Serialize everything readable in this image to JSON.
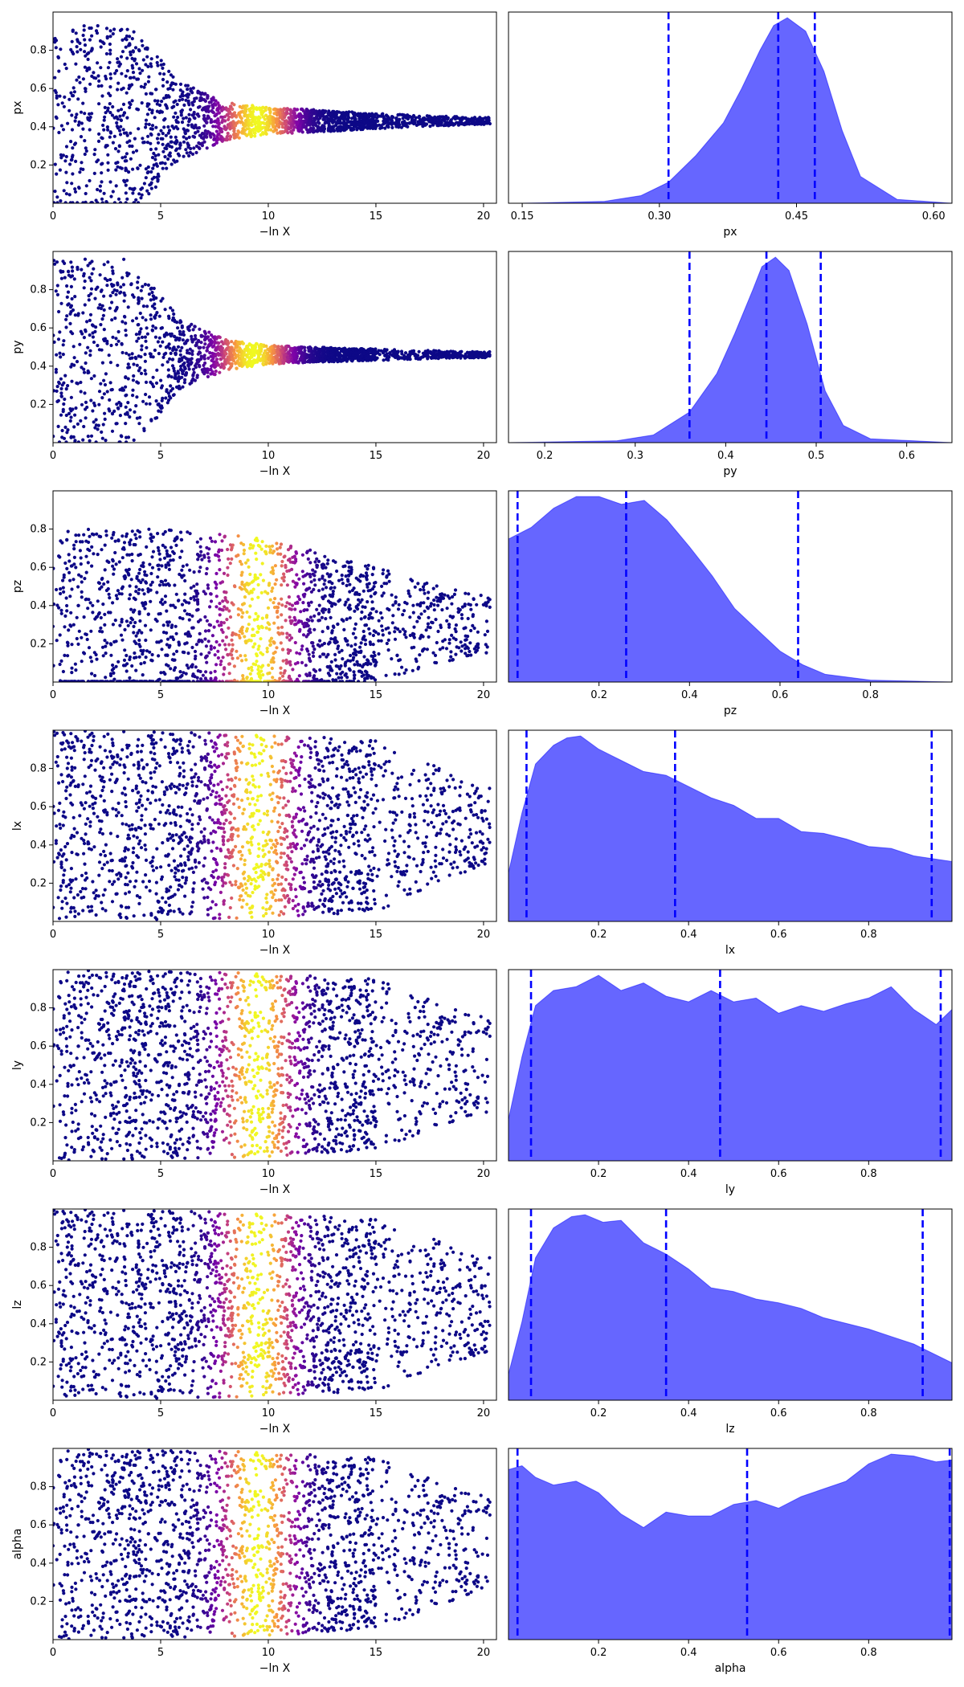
{
  "chart_data": [
    {
      "type": "scatter",
      "row": 0,
      "x_axis": {
        "label": "−ln X",
        "range": [
          0,
          20.6
        ],
        "ticks": [
          0,
          5,
          10,
          15,
          20
        ]
      },
      "y_axis": {
        "label": "px",
        "range": [
          0.0,
          1.0
        ],
        "ticks": [
          0.2,
          0.4,
          0.6,
          0.8
        ]
      },
      "colormap": "plasma",
      "color_peak_x": 9.5,
      "envelope": {
        "center": 0.43,
        "tight_x": [
          0,
          3.5,
          6,
          8,
          10,
          12,
          15,
          18,
          20
        ],
        "half_width": [
          0.5,
          0.5,
          0.2,
          0.1,
          0.07,
          0.06,
          0.04,
          0.025,
          0.02
        ]
      }
    },
    {
      "type": "area",
      "row": 0,
      "x_axis": {
        "label": "px",
        "range": [
          0.135,
          0.62
        ],
        "ticks": [
          0.15,
          0.3,
          0.45,
          0.6
        ],
        "tick_labels": [
          "0.15",
          "0.30",
          "0.45",
          "0.60"
        ]
      },
      "series": [
        {
          "x": [
            0.15,
            0.24,
            0.28,
            0.31,
            0.34,
            0.37,
            0.39,
            0.41,
            0.425,
            0.44,
            0.46,
            0.48,
            0.5,
            0.52,
            0.56,
            0.62
          ],
          "y": [
            0.0,
            0.01,
            0.04,
            0.11,
            0.25,
            0.42,
            0.6,
            0.8,
            0.93,
            0.97,
            0.9,
            0.69,
            0.38,
            0.14,
            0.02,
            0.0
          ]
        }
      ],
      "quantile_lines": [
        0.31,
        0.43,
        0.47
      ],
      "fill_color": "#6666ff",
      "line_color": "#0000ff"
    },
    {
      "type": "scatter",
      "row": 1,
      "x_axis": {
        "label": "−ln X",
        "range": [
          0,
          20.6
        ],
        "ticks": [
          0,
          5,
          10,
          15,
          20
        ]
      },
      "y_axis": {
        "label": "py",
        "range": [
          0.0,
          1.0
        ],
        "ticks": [
          0.2,
          0.4,
          0.6,
          0.8
        ]
      },
      "colormap": "plasma",
      "color_peak_x": 9.3,
      "envelope": {
        "center": 0.46,
        "tight_x": [
          0,
          3.5,
          6,
          8,
          10,
          12,
          15,
          18,
          20
        ],
        "half_width": [
          0.5,
          0.5,
          0.18,
          0.08,
          0.05,
          0.04,
          0.03,
          0.02,
          0.015
        ]
      }
    },
    {
      "type": "area",
      "row": 1,
      "x_axis": {
        "label": "py",
        "range": [
          0.16,
          0.65
        ],
        "ticks": [
          0.2,
          0.3,
          0.4,
          0.5,
          0.6
        ],
        "tick_labels": [
          "0.2",
          "0.3",
          "0.4",
          "0.5",
          "0.6"
        ]
      },
      "series": [
        {
          "x": [
            0.16,
            0.28,
            0.32,
            0.36,
            0.39,
            0.41,
            0.43,
            0.44,
            0.455,
            0.47,
            0.49,
            0.51,
            0.53,
            0.56,
            0.65
          ],
          "y": [
            0.0,
            0.01,
            0.04,
            0.16,
            0.36,
            0.57,
            0.8,
            0.92,
            0.97,
            0.9,
            0.62,
            0.27,
            0.09,
            0.02,
            0.0
          ]
        }
      ],
      "quantile_lines": [
        0.36,
        0.445,
        0.505
      ],
      "fill_color": "#6666ff",
      "line_color": "#0000ff"
    },
    {
      "type": "scatter",
      "row": 2,
      "x_axis": {
        "label": "−ln X",
        "range": [
          0,
          20.6
        ],
        "ticks": [
          0,
          5,
          10,
          15,
          20
        ]
      },
      "y_axis": {
        "label": "pz",
        "range": [
          0.0,
          1.0
        ],
        "ticks": [
          0.2,
          0.4,
          0.6,
          0.8
        ]
      },
      "colormap": "plasma",
      "color_peak_x": 9.5,
      "envelope": {
        "center": 0.3,
        "tight_x": [
          0,
          5,
          10,
          15,
          20
        ],
        "half_width": [
          0.5,
          0.5,
          0.45,
          0.3,
          0.15
        ]
      }
    },
    {
      "type": "area",
      "row": 2,
      "x_axis": {
        "label": "pz",
        "range": [
          0.0,
          0.98
        ],
        "ticks": [
          0.2,
          0.4,
          0.6,
          0.8
        ],
        "tick_labels": [
          "0.2",
          "0.4",
          "0.6",
          "0.8"
        ]
      },
      "series": [
        {
          "x": [
            0.0,
            0.05,
            0.1,
            0.15,
            0.2,
            0.25,
            0.3,
            0.35,
            0.4,
            0.45,
            0.5,
            0.55,
            0.6,
            0.65,
            0.7,
            0.8,
            0.98
          ],
          "y": [
            0.74,
            0.8,
            0.9,
            0.96,
            0.96,
            0.92,
            0.94,
            0.84,
            0.7,
            0.55,
            0.38,
            0.27,
            0.16,
            0.09,
            0.04,
            0.01,
            0.0
          ]
        }
      ],
      "quantile_lines": [
        0.02,
        0.26,
        0.64
      ],
      "fill_color": "#6666ff",
      "line_color": "#0000ff"
    },
    {
      "type": "scatter",
      "row": 3,
      "x_axis": {
        "label": "−ln X",
        "range": [
          0,
          20.6
        ],
        "ticks": [
          0,
          5,
          10,
          15,
          20
        ]
      },
      "y_axis": {
        "label": "lx",
        "range": [
          0.0,
          1.0
        ],
        "ticks": [
          0.2,
          0.4,
          0.6,
          0.8
        ]
      },
      "colormap": "plasma",
      "color_peak_x": 9.5,
      "envelope": {
        "center": 0.5,
        "tight_x": [
          0,
          10,
          15,
          20
        ],
        "half_width": [
          0.5,
          0.48,
          0.45,
          0.2
        ]
      }
    },
    {
      "type": "area",
      "row": 3,
      "x_axis": {
        "label": "lx",
        "range": [
          0.0,
          0.985
        ],
        "ticks": [
          0.2,
          0.4,
          0.6,
          0.8
        ],
        "tick_labels": [
          "0.2",
          "0.4",
          "0.6",
          "0.8"
        ]
      },
      "series": [
        {
          "x": [
            0.0,
            0.03,
            0.06,
            0.1,
            0.13,
            0.16,
            0.2,
            0.25,
            0.3,
            0.35,
            0.4,
            0.45,
            0.5,
            0.55,
            0.6,
            0.65,
            0.7,
            0.75,
            0.8,
            0.85,
            0.9,
            0.985
          ],
          "y": [
            0.26,
            0.58,
            0.84,
            0.94,
            0.98,
            0.99,
            0.92,
            0.86,
            0.8,
            0.78,
            0.72,
            0.66,
            0.62,
            0.55,
            0.55,
            0.48,
            0.47,
            0.44,
            0.4,
            0.39,
            0.35,
            0.32
          ]
        }
      ],
      "quantile_lines": [
        0.04,
        0.37,
        0.94
      ],
      "fill_color": "#6666ff",
      "line_color": "#0000ff"
    },
    {
      "type": "scatter",
      "row": 4,
      "x_axis": {
        "label": "−ln X",
        "range": [
          0,
          20.6
        ],
        "ticks": [
          0,
          5,
          10,
          15,
          20
        ]
      },
      "y_axis": {
        "label": "ly",
        "range": [
          0.0,
          1.0
        ],
        "ticks": [
          0.2,
          0.4,
          0.6,
          0.8
        ]
      },
      "colormap": "plasma",
      "color_peak_x": 9.5,
      "envelope": {
        "center": 0.5,
        "tight_x": [
          0,
          10,
          15,
          20
        ],
        "half_width": [
          0.5,
          0.48,
          0.45,
          0.25
        ]
      }
    },
    {
      "type": "area",
      "row": 4,
      "x_axis": {
        "label": "ly",
        "range": [
          0.0,
          0.985
        ],
        "ticks": [
          0.2,
          0.4,
          0.6,
          0.8
        ],
        "tick_labels": [
          "0.2",
          "0.4",
          "0.6",
          "0.8"
        ]
      },
      "series": [
        {
          "x": [
            0.0,
            0.03,
            0.06,
            0.1,
            0.15,
            0.2,
            0.25,
            0.3,
            0.35,
            0.4,
            0.45,
            0.5,
            0.55,
            0.6,
            0.65,
            0.7,
            0.75,
            0.8,
            0.85,
            0.9,
            0.95,
            0.985
          ],
          "y": [
            0.22,
            0.55,
            0.82,
            0.9,
            0.92,
            0.98,
            0.9,
            0.94,
            0.87,
            0.84,
            0.9,
            0.84,
            0.86,
            0.78,
            0.82,
            0.79,
            0.83,
            0.86,
            0.92,
            0.8,
            0.72,
            0.8
          ]
        }
      ],
      "quantile_lines": [
        0.05,
        0.47,
        0.96
      ],
      "fill_color": "#6666ff",
      "line_color": "#0000ff"
    },
    {
      "type": "scatter",
      "row": 5,
      "x_axis": {
        "label": "−ln X",
        "range": [
          0,
          20.6
        ],
        "ticks": [
          0,
          5,
          10,
          15,
          20
        ]
      },
      "y_axis": {
        "label": "lz",
        "range": [
          0.0,
          1.0
        ],
        "ticks": [
          0.2,
          0.4,
          0.6,
          0.8
        ]
      },
      "colormap": "plasma",
      "color_peak_x": 9.5,
      "envelope": {
        "center": 0.5,
        "tight_x": [
          0,
          10,
          15,
          20
        ],
        "half_width": [
          0.5,
          0.48,
          0.45,
          0.25
        ]
      }
    },
    {
      "type": "area",
      "row": 5,
      "x_axis": {
        "label": "lz",
        "range": [
          0.0,
          0.985
        ],
        "ticks": [
          0.2,
          0.4,
          0.6,
          0.8
        ],
        "tick_labels": [
          "0.2",
          "0.4",
          "0.6",
          "0.8"
        ]
      },
      "series": [
        {
          "x": [
            0.0,
            0.03,
            0.06,
            0.1,
            0.14,
            0.17,
            0.21,
            0.25,
            0.3,
            0.35,
            0.4,
            0.45,
            0.5,
            0.55,
            0.6,
            0.65,
            0.7,
            0.75,
            0.8,
            0.85,
            0.9,
            0.985
          ],
          "y": [
            0.14,
            0.42,
            0.76,
            0.92,
            0.98,
            0.99,
            0.95,
            0.96,
            0.84,
            0.78,
            0.7,
            0.6,
            0.58,
            0.54,
            0.52,
            0.49,
            0.44,
            0.41,
            0.38,
            0.34,
            0.3,
            0.2
          ]
        }
      ],
      "quantile_lines": [
        0.05,
        0.35,
        0.92
      ],
      "fill_color": "#6666ff",
      "line_color": "#0000ff"
    },
    {
      "type": "scatter",
      "row": 6,
      "x_axis": {
        "label": "−ln X",
        "range": [
          0,
          20.6
        ],
        "ticks": [
          0,
          5,
          10,
          15,
          20
        ]
      },
      "y_axis": {
        "label": "alpha",
        "range": [
          0.0,
          1.0
        ],
        "ticks": [
          0.2,
          0.4,
          0.6,
          0.8
        ]
      },
      "colormap": "plasma",
      "color_peak_x": 9.5,
      "envelope": {
        "center": 0.5,
        "tight_x": [
          0,
          10,
          15,
          20
        ],
        "half_width": [
          0.5,
          0.48,
          0.45,
          0.25
        ]
      }
    },
    {
      "type": "area",
      "row": 6,
      "x_axis": {
        "label": "alpha",
        "range": [
          0.0,
          0.985
        ],
        "ticks": [
          0.2,
          0.4,
          0.6,
          0.8
        ],
        "tick_labels": [
          "0.2",
          "0.4",
          "0.6",
          "0.8"
        ]
      },
      "series": [
        {
          "x": [
            0.0,
            0.03,
            0.06,
            0.1,
            0.15,
            0.2,
            0.25,
            0.3,
            0.35,
            0.4,
            0.45,
            0.5,
            0.55,
            0.6,
            0.65,
            0.7,
            0.75,
            0.8,
            0.85,
            0.9,
            0.95,
            0.985
          ],
          "y": [
            0.88,
            0.9,
            0.84,
            0.8,
            0.82,
            0.76,
            0.65,
            0.58,
            0.66,
            0.64,
            0.64,
            0.7,
            0.72,
            0.68,
            0.74,
            0.78,
            0.82,
            0.91,
            0.96,
            0.95,
            0.92,
            0.93
          ]
        }
      ],
      "quantile_lines": [
        0.02,
        0.53,
        0.98
      ],
      "fill_color": "#6666ff",
      "line_color": "#0000ff"
    }
  ]
}
